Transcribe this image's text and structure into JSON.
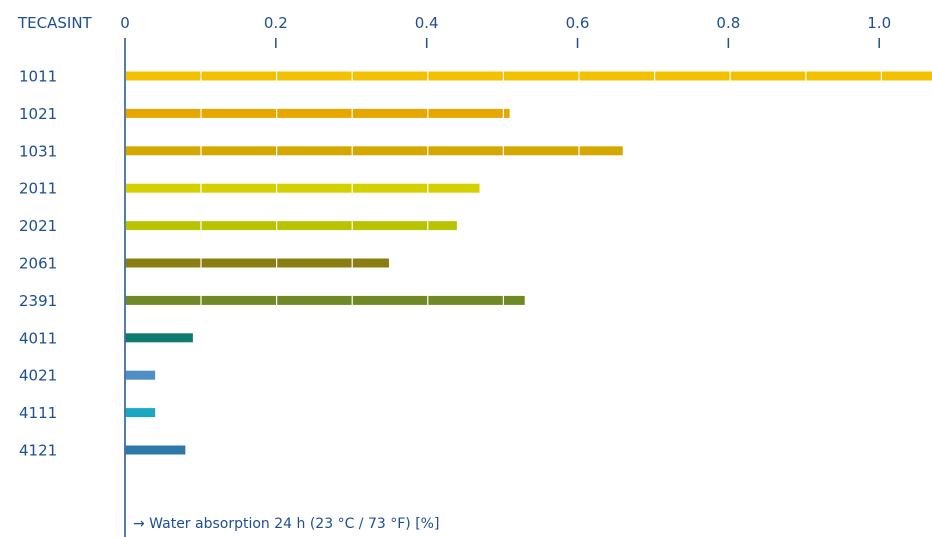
{
  "chart_data": {
    "type": "bar",
    "orientation": "horizontal",
    "category_header": "TECASINT",
    "xlabel": "→  Water absorption 24 h (23 °C / 73 °F) [%]",
    "ylabel": "",
    "xlim": [
      0,
      1.07
    ],
    "x_ticks": [
      0,
      0.2,
      0.4,
      0.6,
      0.8,
      1.0
    ],
    "x_tick_labels": [
      "0",
      "0.2",
      "0.4",
      "0.6",
      "0.8",
      "1.0"
    ],
    "categories": [
      "1011",
      "1021",
      "1031",
      "2011",
      "2021",
      "2061",
      "2391",
      "4011",
      "4021",
      "4111",
      "4121"
    ],
    "values": [
      1.07,
      0.51,
      0.66,
      0.47,
      0.44,
      0.35,
      0.53,
      0.09,
      0.04,
      0.04,
      0.08
    ],
    "colors": [
      "#f4c100",
      "#e8a600",
      "#d4a800",
      "#d4d000",
      "#b8c400",
      "#8a7e12",
      "#6f8a24",
      "#0f7a6d",
      "#4f8fc6",
      "#1aa8c2",
      "#2d78a8"
    ],
    "grid": true,
    "legend": "none"
  }
}
